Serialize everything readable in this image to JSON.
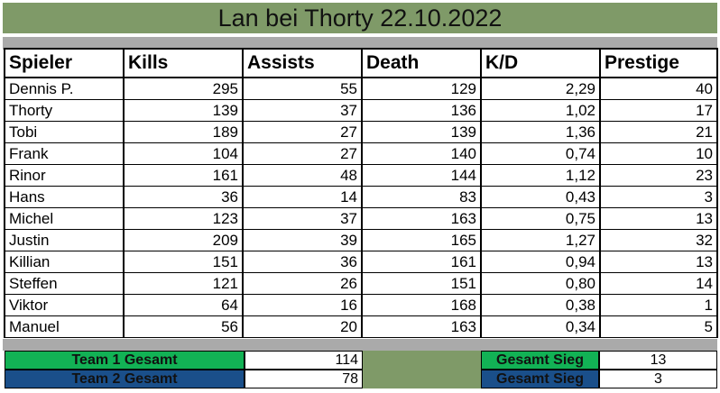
{
  "title": "Lan bei Thorty 22.10.2022",
  "columns": [
    "Spieler",
    "Kills",
    "Assists",
    "Death",
    "K/D",
    "Prestige"
  ],
  "rows": [
    [
      "Dennis P.",
      "295",
      "55",
      "129",
      "2,29",
      "40"
    ],
    [
      "Thorty",
      "139",
      "37",
      "136",
      "1,02",
      "17"
    ],
    [
      "Tobi",
      "189",
      "27",
      "139",
      "1,36",
      "21"
    ],
    [
      "Frank",
      "104",
      "27",
      "140",
      "0,74",
      "10"
    ],
    [
      "Rinor",
      "161",
      "48",
      "144",
      "1,12",
      "23"
    ],
    [
      "Hans",
      "36",
      "14",
      "83",
      "0,43",
      "3"
    ],
    [
      "Michel",
      "123",
      "37",
      "163",
      "0,75",
      "13"
    ],
    [
      "Justin",
      "209",
      "39",
      "165",
      "1,27",
      "32"
    ],
    [
      "Killian",
      "151",
      "36",
      "161",
      "0,94",
      "13"
    ],
    [
      "Steffen",
      "121",
      "26",
      "151",
      "0,80",
      "14"
    ],
    [
      "Viktor",
      "64",
      "16",
      "168",
      "0,38",
      "1"
    ],
    [
      "Manuel",
      "56",
      "20",
      "163",
      "0,34",
      "5"
    ]
  ],
  "summary": {
    "team1_label": "Team 1 Gesamt",
    "team1_value": "114",
    "team2_label": "Team 2 Gesamt",
    "team2_value": "78",
    "win1_label": "Gesamt Sieg",
    "win1_value": "13",
    "win2_label": "Gesamt Sieg",
    "win2_value": "3"
  },
  "colors": {
    "title_band": "#7f9a68",
    "separator": "#aaaaaa",
    "team1": "#12b255",
    "team2": "#1a4f8a"
  }
}
